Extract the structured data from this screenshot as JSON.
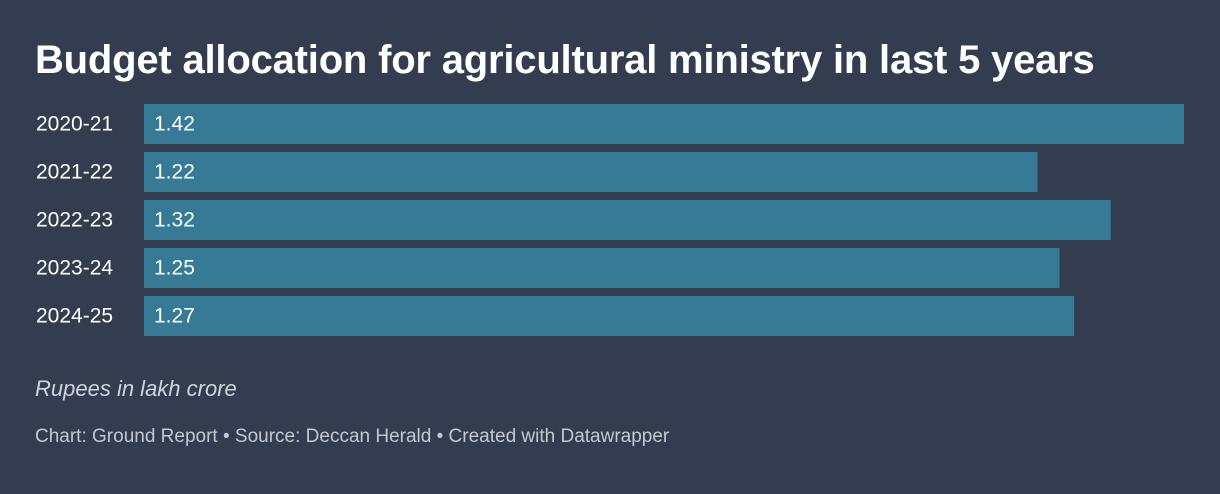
{
  "title": "Budget allocation for agricultural ministry in last 5 years",
  "notes": "Rupees in lakh crore",
  "footer": "Chart: Ground Report • Source: Deccan Herald • Created with Datawrapper",
  "colors": {
    "background": "#333d4f",
    "bar": "#367a96",
    "text": "#ffffff"
  },
  "chart_data": {
    "type": "bar",
    "orientation": "horizontal",
    "categories": [
      "2020-21",
      "2021-22",
      "2022-23",
      "2023-24",
      "2024-25"
    ],
    "values": [
      1.42,
      1.22,
      1.32,
      1.25,
      1.27
    ],
    "value_labels": [
      "1.42",
      "1.22",
      "1.32",
      "1.25",
      "1.27"
    ],
    "xlim": [
      0,
      1.42
    ],
    "grid": false,
    "legend": "none"
  }
}
